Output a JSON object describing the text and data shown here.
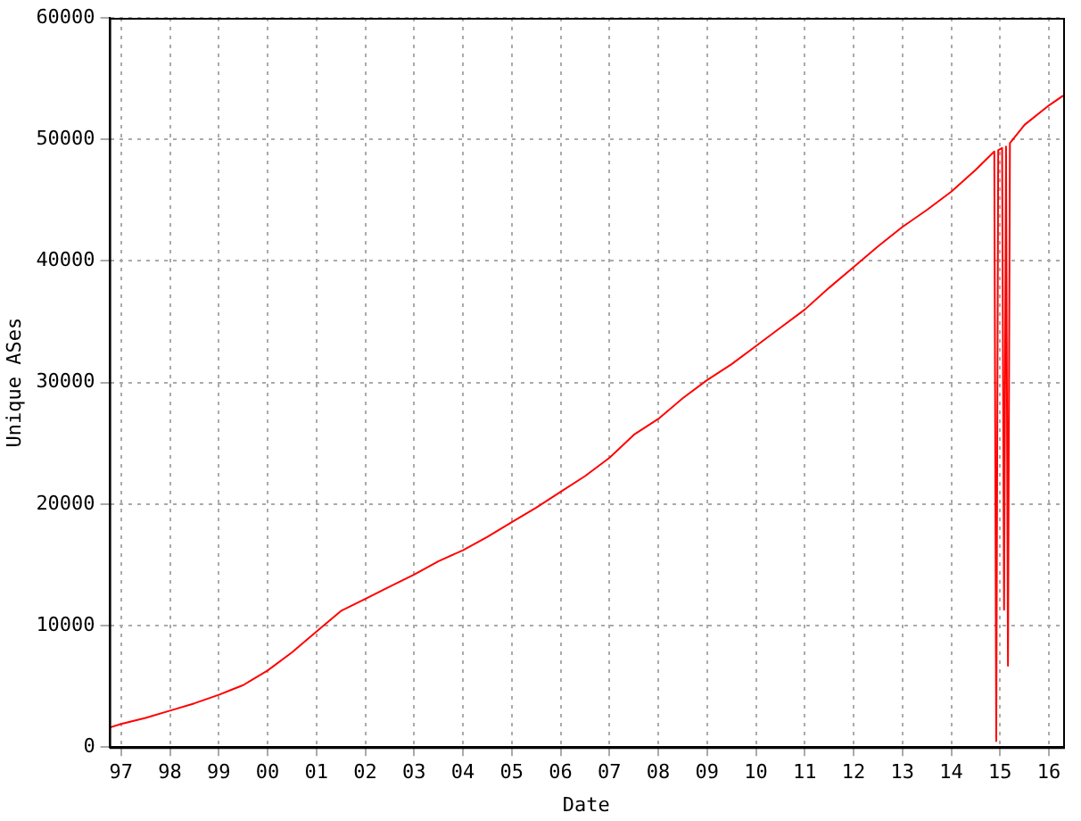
{
  "chart_data": {
    "type": "line",
    "xlabel": "Date",
    "ylabel": "Unique ASes",
    "x": [
      1996.76,
      1997,
      1997.5,
      1998,
      1998.5,
      1999,
      1999.5,
      2000,
      2000.5,
      2001,
      2001.5,
      2002,
      2002.5,
      2003,
      2003.5,
      2004,
      2004.5,
      2005,
      2005.5,
      2006,
      2006.5,
      2007,
      2007.5,
      2008,
      2008.5,
      2009,
      2009.5,
      2010,
      2010.5,
      2011,
      2011.5,
      2012,
      2012.5,
      2013,
      2013.5,
      2014,
      2014.5,
      2014.88,
      2014.92,
      2014.96,
      2015.04,
      2015.08,
      2015.12,
      2015.16,
      2015.2,
      2015.5,
      2016,
      2016.29
    ],
    "series": [
      {
        "color": "#ff0000",
        "values": [
          1600,
          1900,
          2400,
          3000,
          3600,
          4300,
          5100,
          6300,
          7800,
          9500,
          11200,
          12200,
          13200,
          14200,
          15300,
          16200,
          17300,
          18500,
          19700,
          21000,
          22300,
          23800,
          25700,
          27000,
          28700,
          30200,
          31500,
          33000,
          34500,
          36000,
          37800,
          39500,
          41200,
          42800,
          44200,
          45700,
          47500,
          49000,
          500,
          49100,
          49300,
          11300,
          49400,
          6700,
          49700,
          51200,
          52800,
          53600
        ]
      }
    ],
    "xlim": [
      1996.76,
      2016.29
    ],
    "xticks": [
      {
        "value": 1997,
        "label": "97"
      },
      {
        "value": 1998,
        "label": "98"
      },
      {
        "value": 1999,
        "label": "99"
      },
      {
        "value": 2000,
        "label": "00"
      },
      {
        "value": 2001,
        "label": "01"
      },
      {
        "value": 2002,
        "label": "02"
      },
      {
        "value": 2003,
        "label": "03"
      },
      {
        "value": 2004,
        "label": "04"
      },
      {
        "value": 2005,
        "label": "05"
      },
      {
        "value": 2006,
        "label": "06"
      },
      {
        "value": 2007,
        "label": "07"
      },
      {
        "value": 2008,
        "label": "08"
      },
      {
        "value": 2009,
        "label": "09"
      },
      {
        "value": 2010,
        "label": "10"
      },
      {
        "value": 2011,
        "label": "11"
      },
      {
        "value": 2012,
        "label": "12"
      },
      {
        "value": 2013,
        "label": "13"
      },
      {
        "value": 2014,
        "label": "14"
      },
      {
        "value": 2015,
        "label": "15"
      },
      {
        "value": 2016,
        "label": "16"
      }
    ],
    "ylim": [
      0,
      60000
    ],
    "yticks": [
      0,
      10000,
      20000,
      30000,
      40000,
      50000,
      60000
    ],
    "grid": true,
    "legend": false,
    "marker": "none",
    "line_style": "solid"
  }
}
